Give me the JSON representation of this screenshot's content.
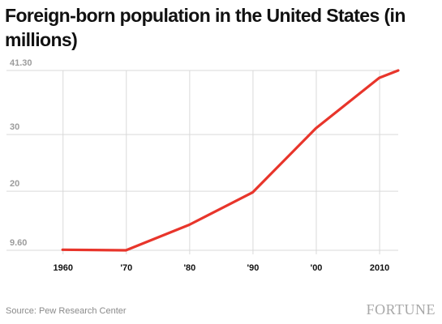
{
  "chart_data": {
    "type": "line",
    "title": "Foreign-born population in the United States (in millions)",
    "xlabel": "",
    "ylabel": "",
    "x_tick_labels": [
      "1960",
      "'70",
      "'80",
      "'90",
      "'00",
      "2010"
    ],
    "y_tick_labels": [
      "41.30",
      "30",
      "20",
      "9.60"
    ],
    "y_ticks": [
      41.3,
      30,
      20,
      9.6
    ],
    "ylim": [
      9.6,
      41.3
    ],
    "xlim": [
      1956,
      2013
    ],
    "series": [
      {
        "color": "#e8352b",
        "points": [
          {
            "x": 1960,
            "y": 9.7
          },
          {
            "x": 1970,
            "y": 9.6
          },
          {
            "x": 1980,
            "y": 14.1
          },
          {
            "x": 1990,
            "y": 19.8
          },
          {
            "x": 2000,
            "y": 31.1
          },
          {
            "x": 2010,
            "y": 40.0
          },
          {
            "x": 2013,
            "y": 41.3
          }
        ]
      }
    ],
    "grid": true
  },
  "source": "Source: Pew Research Center",
  "brand": "FORTUNE",
  "colors": {
    "line": "#e8352b",
    "grid": "#d9d9d9",
    "ytick": "#9c9c9c",
    "xtick": "#111111"
  }
}
